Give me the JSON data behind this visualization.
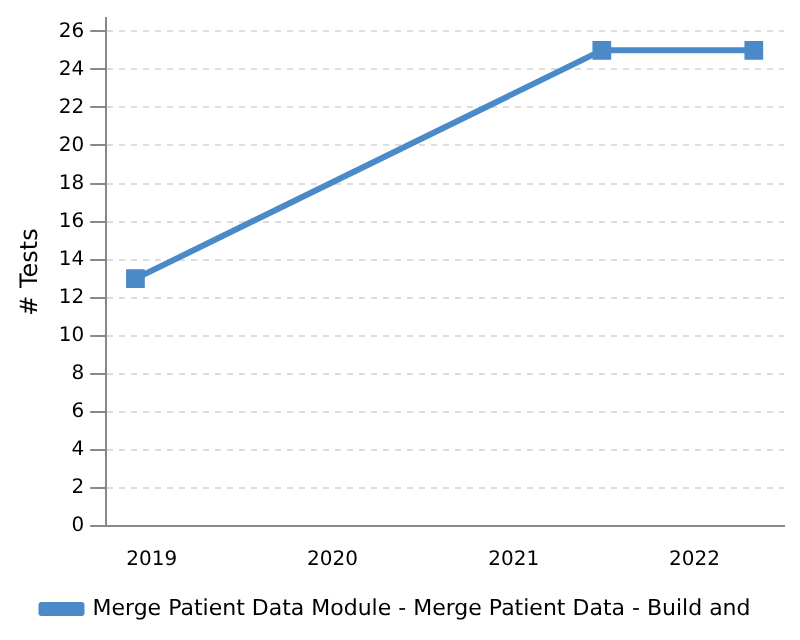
{
  "chart_data": {
    "type": "line",
    "ylabel": "# Tests",
    "x": [
      "2018-11-29",
      "2021-06-28",
      "2022-05-01"
    ],
    "series": [
      {
        "name": "Merge Patient Data Module - Merge Patient Data - Build and",
        "color": "#4a8ac9",
        "values": [
          13,
          25,
          25
        ]
      }
    ],
    "xlim": [
      "2018-10-01",
      "2022-07-01"
    ],
    "xticks": [
      {
        "value": "2019-01-01",
        "label": "2019"
      },
      {
        "value": "2020-01-01",
        "label": "2020"
      },
      {
        "value": "2021-01-01",
        "label": "2021"
      },
      {
        "value": "2022-01-01",
        "label": "2022"
      }
    ],
    "ylim": [
      0,
      26.7
    ],
    "yticks": [
      0,
      2,
      4,
      6,
      8,
      10,
      12,
      14,
      16,
      18,
      20,
      22,
      24,
      26
    ],
    "grid": "y",
    "legend": "bottom",
    "marker": "square",
    "line_style": "solid"
  }
}
